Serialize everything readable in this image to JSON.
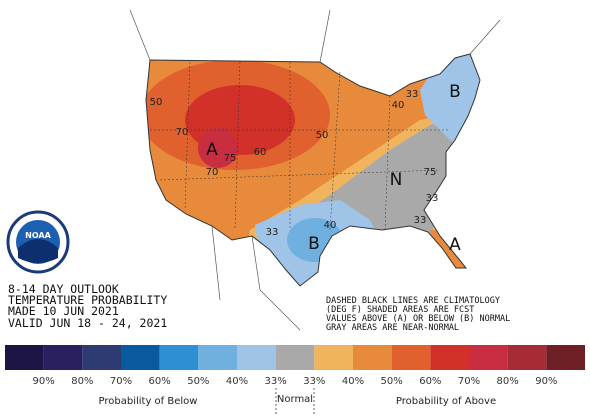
{
  "logo": "NOAA",
  "map": {
    "labels": [
      "A",
      "B",
      "N",
      "B",
      "A",
      "50",
      "70",
      "75",
      "60",
      "70",
      "50",
      "40",
      "33",
      "33",
      "40",
      "75",
      "33",
      "33"
    ]
  },
  "header": [
    "8-14 DAY OUTLOOK",
    "TEMPERATURE PROBABILITY",
    "MADE   10 JUN 2021",
    "VALID   JUN 18 - 24, 2021"
  ],
  "notes": [
    "DASHED BLACK LINES ARE CLIMATOLOGY",
    "(DEG F) SHADED AREAS ARE FCST",
    "VALUES ABOVE (A) OR BELOW (B) NORMAL",
    "GRAY AREAS ARE NEAR-NORMAL"
  ],
  "legend": {
    "colors": [
      "#1c1545",
      "#2a2060",
      "#2e3b73",
      "#0a5aa0",
      "#2f8fd3",
      "#6fb0e0",
      "#a0c4e8",
      "#a9a9a9",
      "#f0b45e",
      "#e88a3c",
      "#e0602e",
      "#d13128",
      "#c92d40",
      "#a52c35",
      "#6e1f25"
    ],
    "labels": [
      "90%",
      "80%",
      "70%",
      "60%",
      "50%",
      "40%",
      "33%",
      "33%",
      "40%",
      "50%",
      "60%",
      "70%",
      "80%",
      "90%"
    ],
    "captions": [
      "Probability of Below",
      "Normal",
      "Probability of Above"
    ]
  }
}
